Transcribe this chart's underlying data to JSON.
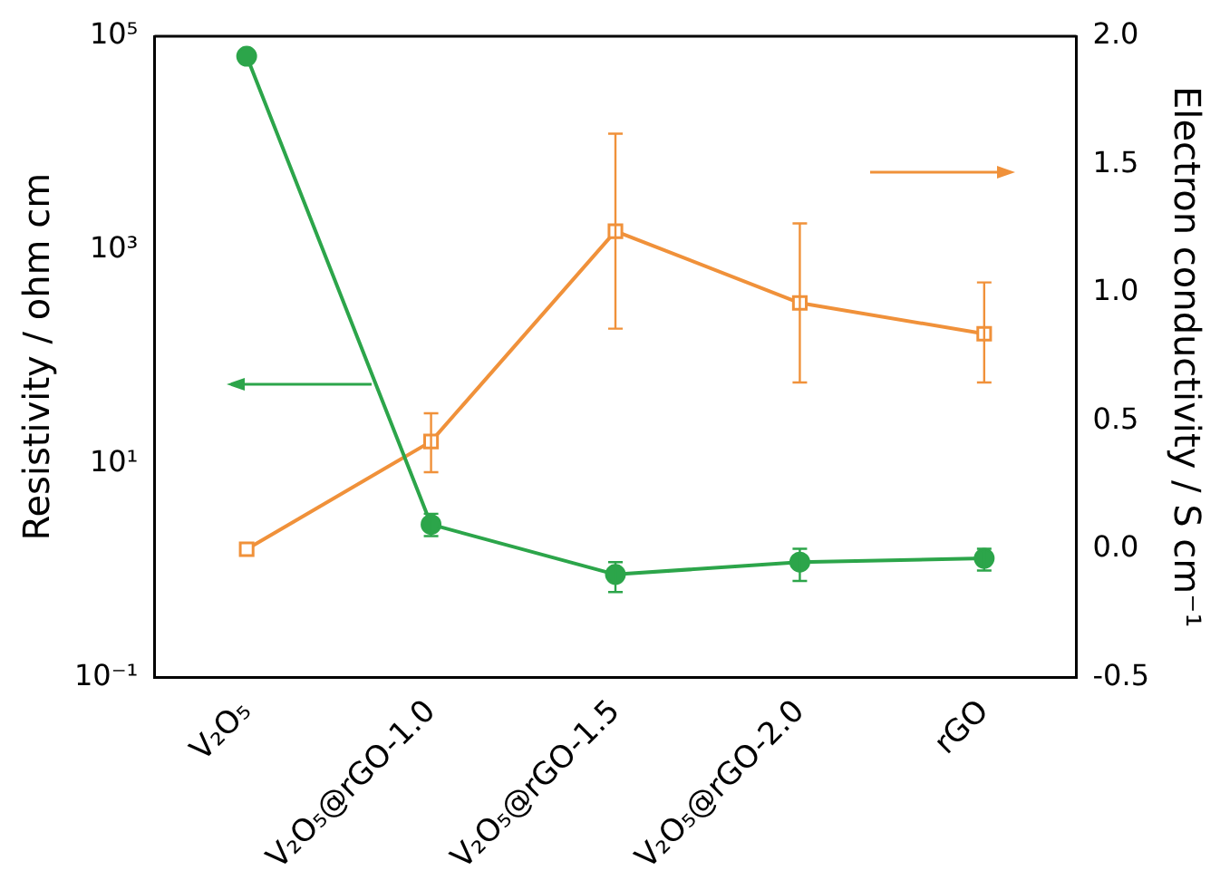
{
  "chart_data": {
    "type": "line",
    "ylabel": "Resistivity / ohm cm",
    "y2label": "Electron conductivity / S cm⁻¹",
    "categories": [
      "V₂O₅",
      "V₂O₅@rGO-1.0",
      "V₂O₅@rGO-1.5",
      "V₂O₅@rGO-2.0",
      "rGO"
    ],
    "series": [
      {
        "color": "#2ca54a",
        "marker": "circle",
        "axis": "y",
        "values": [
          65000,
          2.7,
          0.92,
          1.2,
          1.3
        ],
        "errors": [
          null,
          [
            2.1,
            3.4
          ],
          [
            0.63,
            1.2
          ],
          [
            0.8,
            1.6
          ],
          [
            1.0,
            1.6
          ]
        ]
      },
      {
        "color": "#f0913a",
        "marker": "square",
        "axis": "y2",
        "values": [
          0.0,
          0.42,
          1.24,
          0.96,
          0.84
        ],
        "errors": [
          null,
          [
            0.3,
            0.53
          ],
          [
            0.86,
            1.62
          ],
          [
            0.65,
            1.27
          ],
          [
            0.65,
            1.04
          ]
        ]
      }
    ],
    "log": "y",
    "ylim": [
      0.1,
      100000
    ],
    "yticks": [
      {
        "value": 0.1,
        "label": "10⁻¹"
      },
      {
        "value": 10,
        "label": "10¹"
      },
      {
        "value": 1000,
        "label": "10³"
      },
      {
        "value": 100000,
        "label": "10⁵"
      }
    ],
    "y2lim": [
      -0.5,
      2.0
    ],
    "y2ticks": [
      {
        "value": -0.5,
        "label": "-0.5"
      },
      {
        "value": 0,
        "label": "0.0"
      },
      {
        "value": 0.5,
        "label": "0.5"
      },
      {
        "value": 1,
        "label": "1.0"
      },
      {
        "value": 1.5,
        "label": "1.5"
      },
      {
        "value": 2,
        "label": "2.0"
      }
    ],
    "grid": false,
    "legend": false,
    "line_style": "solid"
  }
}
